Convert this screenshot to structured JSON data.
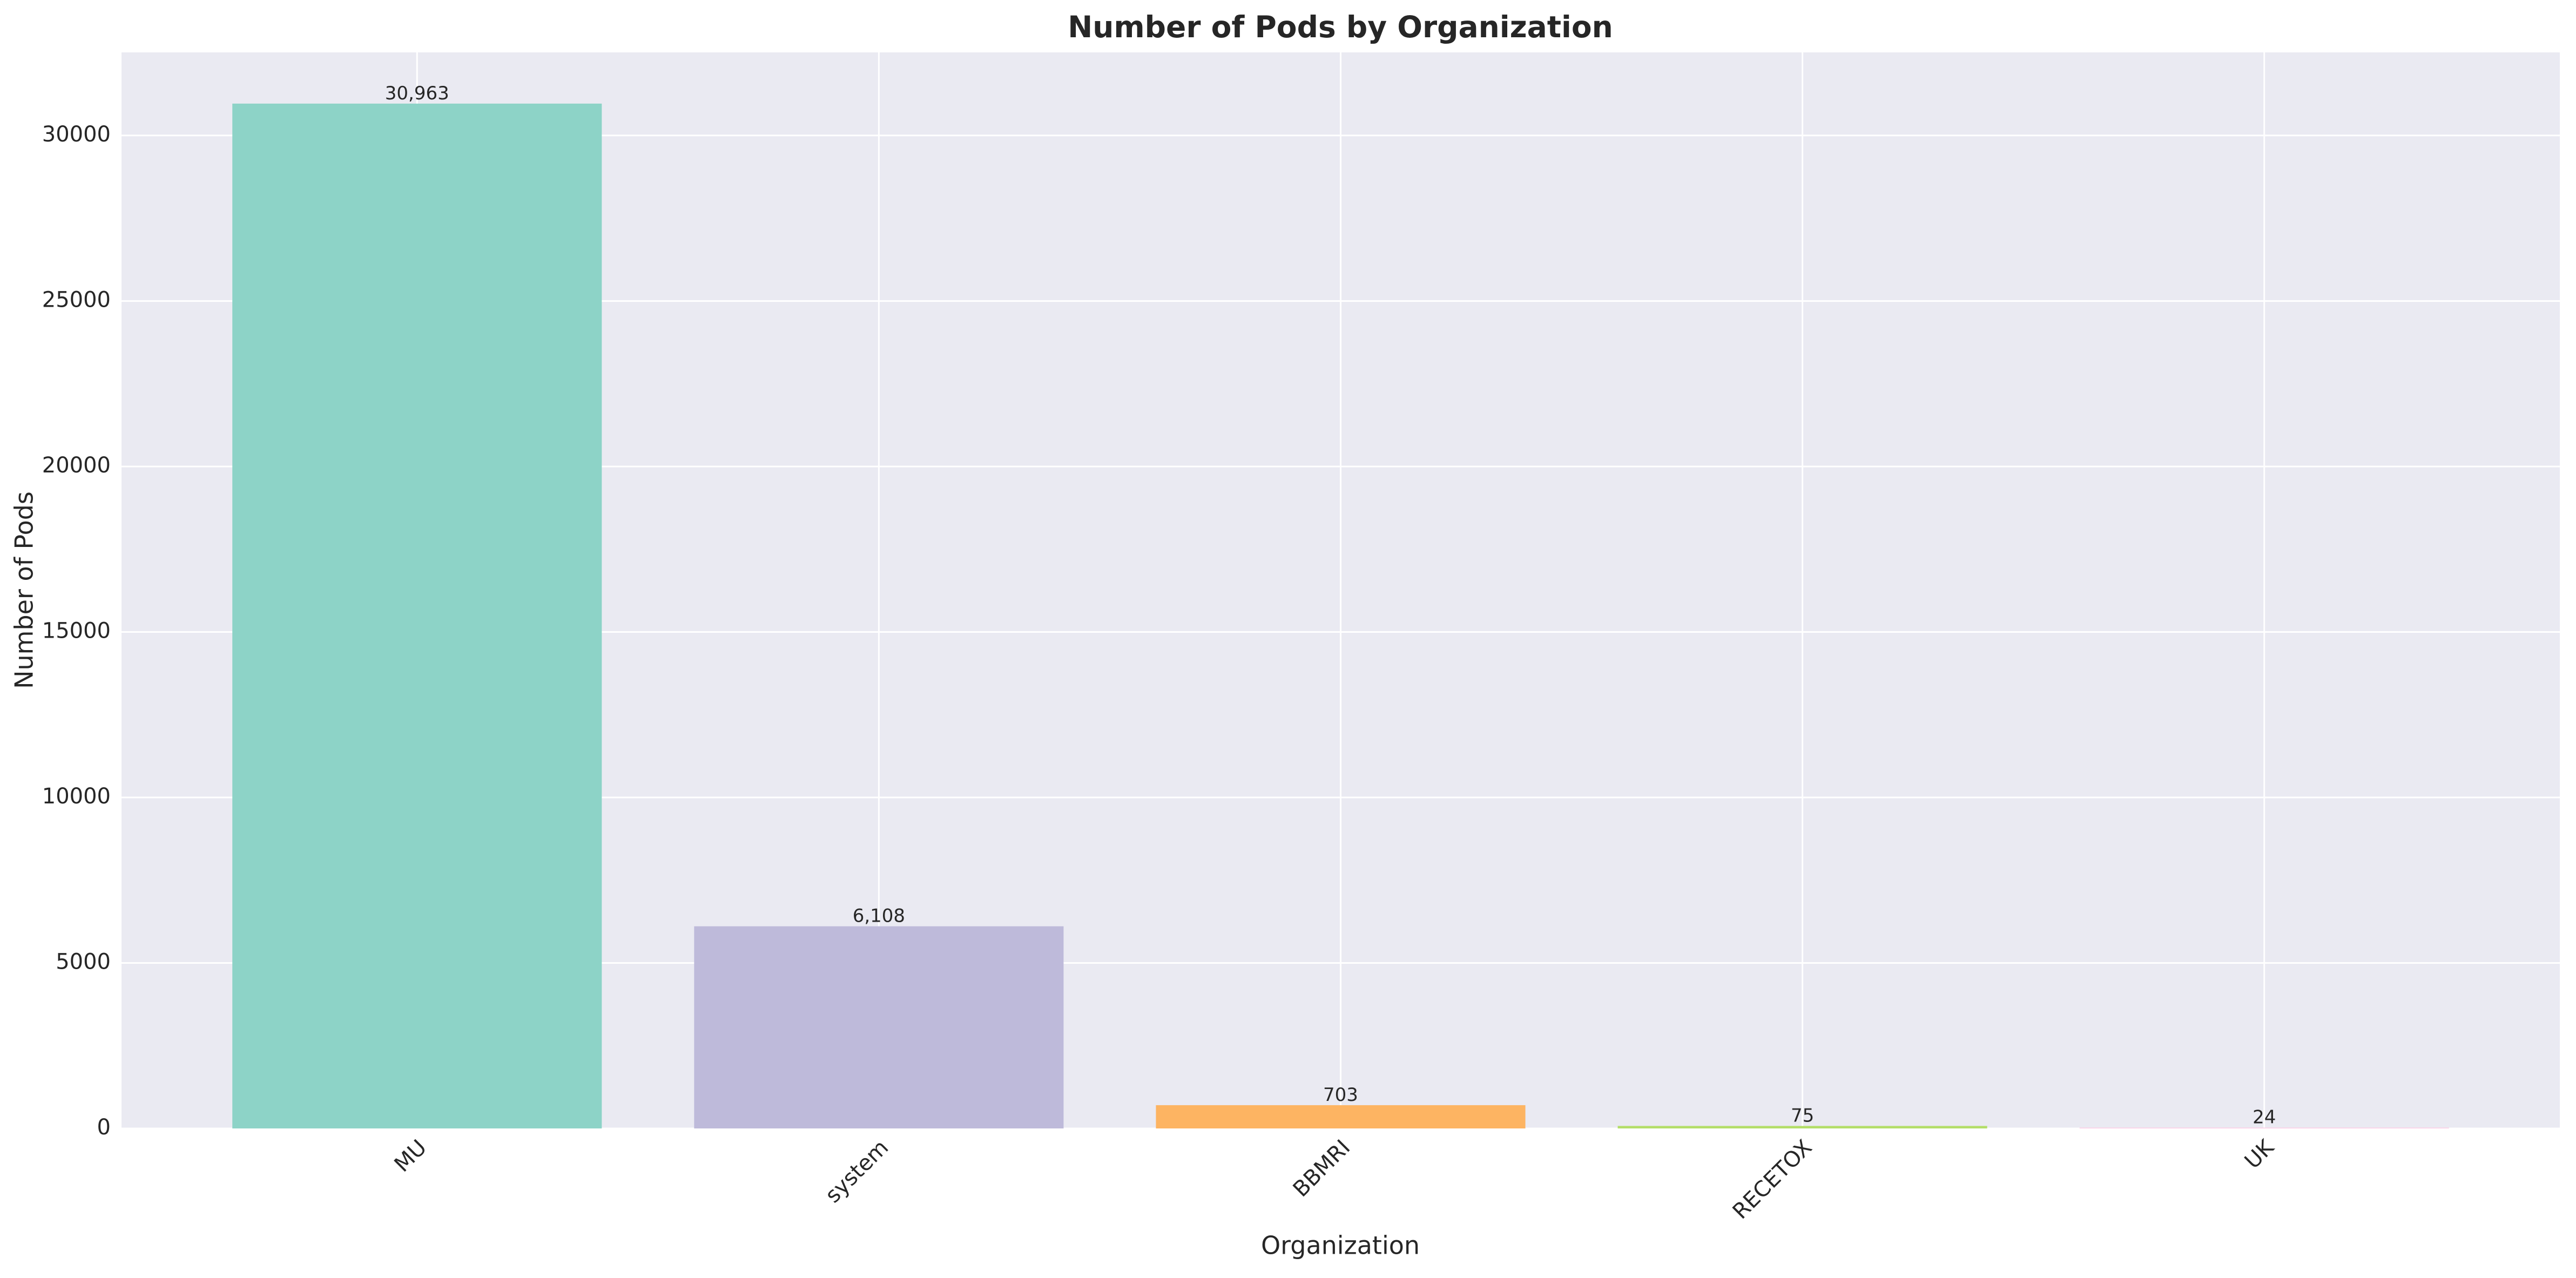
{
  "chart_data": {
    "type": "bar",
    "title": "Number of Pods by Organization",
    "x_label": "Organization",
    "y_label": "Number of Pods",
    "categories": [
      "MU",
      "system",
      "BBMRI",
      "RECETOX",
      "UK"
    ],
    "values": [
      30963,
      6108,
      703,
      75,
      24
    ],
    "value_labels": [
      "30,963",
      "6,108",
      "703",
      "75",
      "24"
    ],
    "colors": [
      "#8dd3c7",
      "#bebada",
      "#fdb462",
      "#b3de69",
      "#fccde5"
    ],
    "ylim": [
      0,
      32511
    ],
    "yticks": [
      0,
      5000,
      10000,
      15000,
      20000,
      25000,
      30000
    ],
    "grid": true
  }
}
